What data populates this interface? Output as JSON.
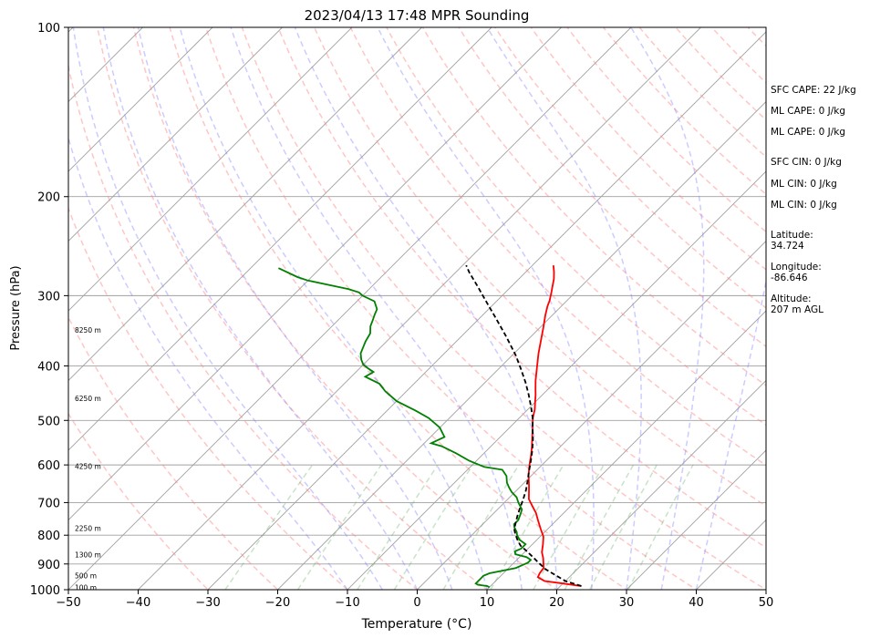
{
  "chart_data": {
    "type": "line",
    "title": "2023/04/13 17:48 MPR Sounding",
    "xlabel": "Temperature (°C)",
    "ylabel": "Pressure (hPa)",
    "xlim": [
      -50,
      50
    ],
    "ylim": [
      1000,
      100
    ],
    "y_scale": "log",
    "x_ticks": [
      -50,
      -40,
      -30,
      -20,
      -10,
      0,
      10,
      20,
      30,
      40,
      50
    ],
    "y_ticks": [
      100,
      200,
      300,
      400,
      500,
      600,
      700,
      800,
      900,
      1000
    ],
    "grid": true,
    "skew": "skew-T log-p",
    "series": [
      {
        "role": "temperature",
        "color": "#ff0000",
        "points": [
          [
            23,
            985
          ],
          [
            20,
            975
          ],
          [
            17,
            965
          ],
          [
            15.5,
            950
          ],
          [
            15.2,
            935
          ],
          [
            15,
            915
          ],
          [
            14,
            890
          ],
          [
            13.5,
            878
          ],
          [
            12.5,
            858
          ],
          [
            11.5,
            830
          ],
          [
            10.5,
            805
          ],
          [
            9,
            780
          ],
          [
            7.5,
            755
          ],
          [
            6,
            730
          ],
          [
            4.5,
            710
          ],
          [
            3,
            690
          ],
          [
            1.2,
            655
          ],
          [
            -0.5,
            625
          ],
          [
            -1.8,
            600
          ],
          [
            -3,
            576
          ],
          [
            -4,
            558
          ],
          [
            -5.3,
            537
          ],
          [
            -6.5,
            518
          ],
          [
            -8,
            496
          ],
          [
            -9,
            478
          ],
          [
            -10,
            464
          ],
          [
            -11,
            450
          ],
          [
            -11.8,
            440
          ],
          [
            -13,
            425
          ],
          [
            -14.6,
            404
          ],
          [
            -16.5,
            380
          ],
          [
            -18.2,
            358
          ],
          [
            -19.5,
            342
          ],
          [
            -21,
            325
          ],
          [
            -22,
            313
          ],
          [
            -22.5,
            306
          ],
          [
            -23.5,
            295
          ],
          [
            -24,
            290
          ],
          [
            -25,
            280
          ],
          [
            -26,
            272
          ],
          [
            -27,
            265
          ]
        ]
      },
      {
        "role": "dewpoint",
        "color": "#008000",
        "points": [
          [
            10,
            990
          ],
          [
            9.5,
            985
          ],
          [
            8,
            980
          ],
          [
            7.5,
            975
          ],
          [
            7.5,
            965
          ],
          [
            7.5,
            955
          ],
          [
            7.5,
            945
          ],
          [
            8,
            935
          ],
          [
            9.5,
            925
          ],
          [
            11,
            915
          ],
          [
            11.5,
            905
          ],
          [
            12,
            895
          ],
          [
            12,
            885
          ],
          [
            11,
            875
          ],
          [
            9,
            865
          ],
          [
            8.5,
            855
          ],
          [
            9,
            845
          ],
          [
            9,
            830
          ],
          [
            7.5,
            815
          ],
          [
            6.5,
            800
          ],
          [
            6,
            790
          ],
          [
            5,
            775
          ],
          [
            4.5,
            765
          ],
          [
            4.5,
            752
          ],
          [
            4,
            735
          ],
          [
            3.5,
            720
          ],
          [
            2,
            700
          ],
          [
            1,
            685
          ],
          [
            -0.5,
            670
          ],
          [
            -1.5,
            658
          ],
          [
            -2.5,
            645
          ],
          [
            -3.5,
            628
          ],
          [
            -5,
            612
          ],
          [
            -8,
            605
          ],
          [
            -11,
            590
          ],
          [
            -14,
            572
          ],
          [
            -17,
            556
          ],
          [
            -19,
            549
          ],
          [
            -18,
            535
          ],
          [
            -19,
            525
          ],
          [
            -20,
            515
          ],
          [
            -23,
            495
          ],
          [
            -26,
            480
          ],
          [
            -30,
            462
          ],
          [
            -33,
            444
          ],
          [
            -35,
            430
          ],
          [
            -38,
            418
          ],
          [
            -37.5,
            410
          ],
          [
            -39,
            403
          ],
          [
            -40,
            398
          ],
          [
            -41,
            390
          ],
          [
            -42,
            380
          ],
          [
            -42.5,
            371
          ],
          [
            -43,
            362
          ],
          [
            -43.5,
            350
          ],
          [
            -44.5,
            340
          ],
          [
            -45,
            332
          ],
          [
            -45.5,
            325
          ],
          [
            -46,
            317
          ],
          [
            -47.5,
            307
          ],
          [
            -50,
            300
          ],
          [
            -51,
            296
          ],
          [
            -53,
            292
          ],
          [
            -60,
            282
          ],
          [
            -62,
            278
          ],
          [
            -66,
            268
          ]
        ]
      },
      {
        "role": "parcel",
        "color": "#000000",
        "dashed": true,
        "points": [
          [
            23,
            985
          ],
          [
            20,
            965
          ],
          [
            18,
            945
          ],
          [
            15.5,
            920
          ],
          [
            13.5,
            895
          ],
          [
            11.5,
            870
          ],
          [
            10,
            852
          ],
          [
            8.5,
            835
          ],
          [
            7.2,
            815
          ],
          [
            6,
            795
          ],
          [
            5.2,
            780
          ],
          [
            4.5,
            760
          ],
          [
            3.8,
            740
          ],
          [
            3,
            715
          ],
          [
            2.2,
            690
          ],
          [
            1.3,
            665
          ],
          [
            0.2,
            640
          ],
          [
            -1,
            615
          ],
          [
            -2.2,
            590
          ],
          [
            -3.5,
            565
          ],
          [
            -5,
            540
          ],
          [
            -6.5,
            518
          ],
          [
            -8,
            496
          ],
          [
            -10,
            472
          ],
          [
            -12,
            450
          ],
          [
            -14.2,
            428
          ],
          [
            -16.8,
            405
          ],
          [
            -19.5,
            383
          ],
          [
            -23.5,
            355
          ],
          [
            -27.5,
            330
          ],
          [
            -31.5,
            307
          ],
          [
            -35,
            288
          ],
          [
            -38,
            273
          ],
          [
            -39.5,
            265
          ]
        ]
      }
    ],
    "height_labels": [
      {
        "text": "8250 m",
        "p": 345
      },
      {
        "text": "6250 m",
        "p": 457
      },
      {
        "text": "4250 m",
        "p": 603
      },
      {
        "text": "2250 m",
        "p": 778
      },
      {
        "text": "1300 m",
        "p": 866
      },
      {
        "text": "500 m",
        "p": 944
      },
      {
        "text": "100 m",
        "p": 990
      }
    ],
    "colors": {
      "temperature": "#ff0000",
      "dewpoint": "#008000",
      "parcel": "#000000",
      "dry_adiabats": "#ff8080",
      "moist_adiabats": "#8080ff",
      "mixing_ratio": "#60b060",
      "isotherms": "#a0a0a0"
    }
  },
  "side_panel": {
    "sfc_cape": "SFC CAPE: 22 J/kg",
    "ml_cape_1": "ML CAPE: 0 J/kg",
    "ml_cape_2": "ML CAPE: 0 J/kg",
    "sfc_cin": "SFC CIN: 0 J/kg",
    "ml_cin_1": "ML CIN: 0 J/kg",
    "ml_cin_2": "ML CIN: 0 J/kg",
    "latitude_label": "Latitude:",
    "latitude_value": "34.724",
    "longitude_label": "Longitude:",
    "longitude_value": "-86.646",
    "altitude_label": "Altitude:",
    "altitude_value": "207 m AGL"
  }
}
